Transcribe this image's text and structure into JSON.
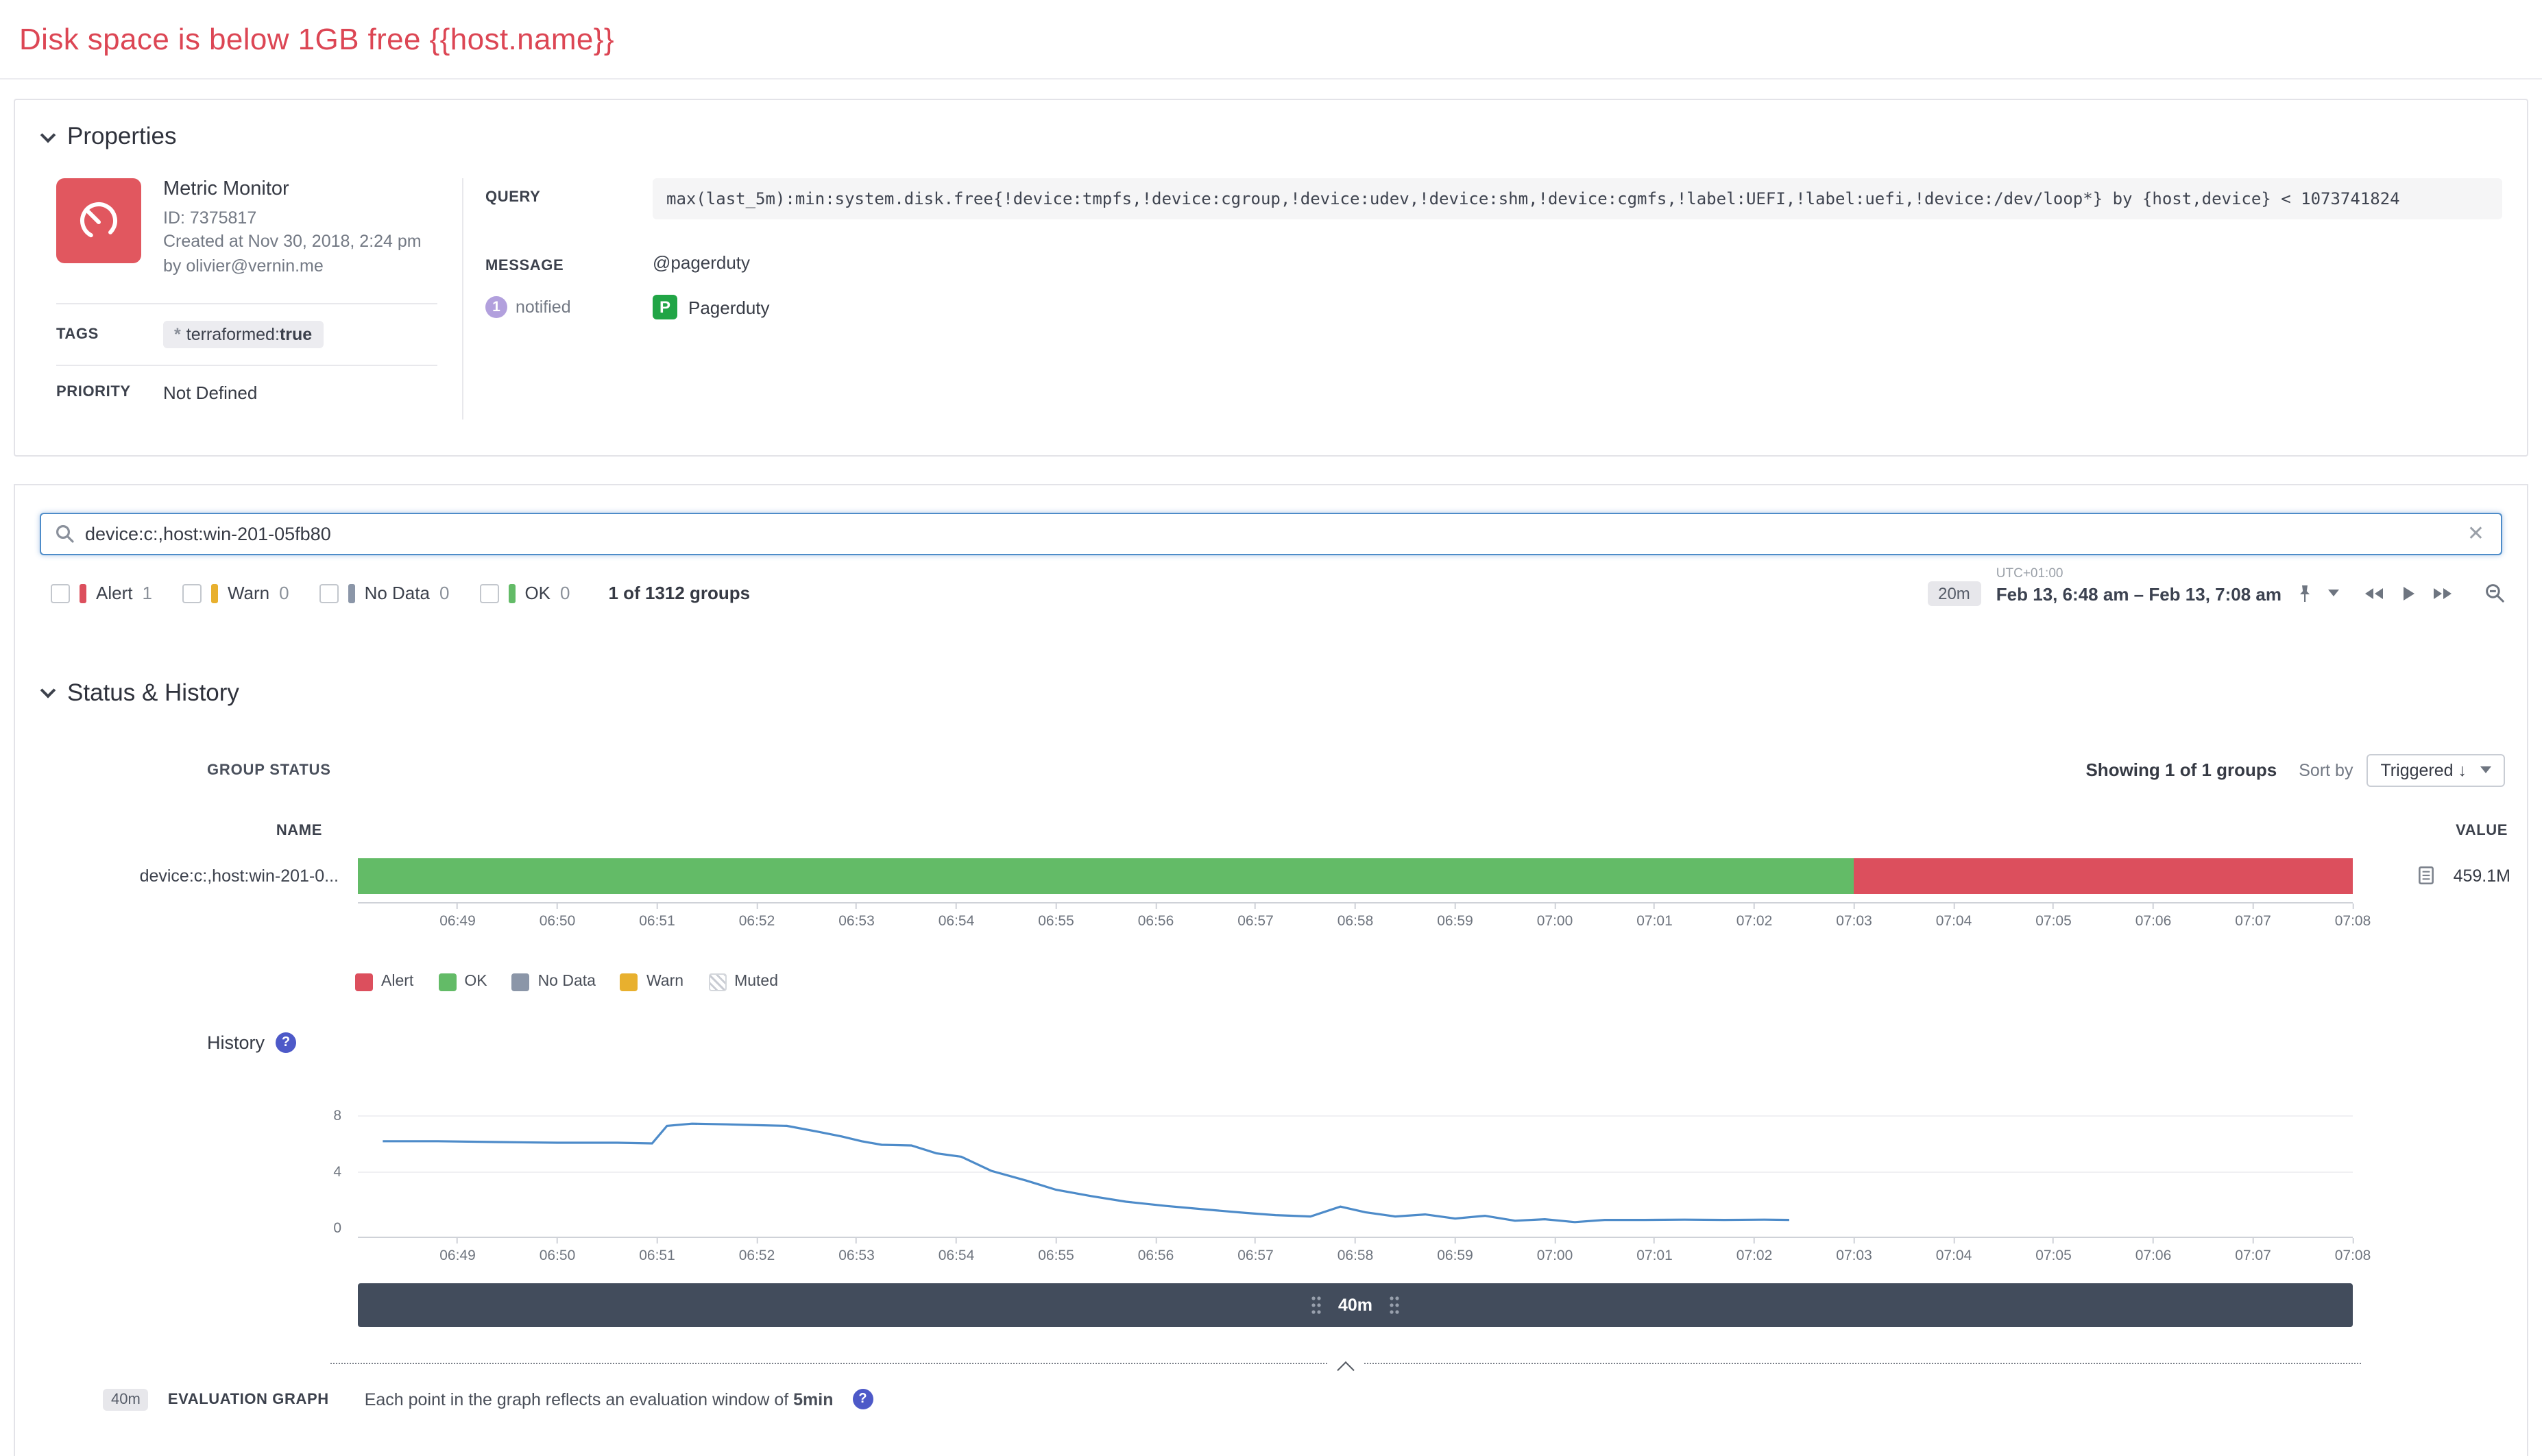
{
  "page": {
    "title": "Disk space is below 1GB free {{host.name}}"
  },
  "properties": {
    "header": "Properties",
    "monitor": {
      "type": "Metric Monitor",
      "id": "ID: 7375817",
      "created": "Created at Nov 30, 2018, 2:24 pm",
      "author": "by olivier@vernin.me"
    },
    "tags": {
      "label": "TAGS",
      "badge_prefix": "terraformed:",
      "badge_bold": "true"
    },
    "priority": {
      "label": "PRIORITY",
      "value": "Not Defined"
    },
    "query": {
      "label": "QUERY",
      "value": "max(last_5m):min:system.disk.free{!device:tmpfs,!device:cgroup,!device:udev,!device:shm,!device:cgmfs,!label:UEFI,!label:uefi,!device:/dev/loop*} by {host,device} < 1073741824"
    },
    "message": {
      "label": "MESSAGE",
      "notified_count": "1",
      "notified_label": "notified",
      "mention": "@pagerduty",
      "integration": "Pagerduty"
    }
  },
  "search": {
    "value": "device:c:,host:win-201-05fb80"
  },
  "filters": {
    "items": [
      {
        "label": "Alert",
        "count": "1",
        "color": "#dc4f5d"
      },
      {
        "label": "Warn",
        "count": "0",
        "color": "#e8b02e"
      },
      {
        "label": "No Data",
        "count": "0",
        "color": "#8b96a8"
      },
      {
        "label": "OK",
        "count": "0",
        "color": "#63bb67"
      }
    ],
    "groups_summary": "1 of 1312 groups"
  },
  "timerange": {
    "badge": "20m",
    "timezone": "UTC+01:00",
    "range": "Feb 13, 6:48 am – Feb 13, 7:08 am"
  },
  "status_history": {
    "header": "Status & History",
    "group_status_label": "GROUP STATUS",
    "showing": "Showing 1 of 1 groups",
    "sort_by_label": "Sort by",
    "sort_value": "Triggered ↓",
    "name_header": "NAME",
    "value_header": "VALUE",
    "row": {
      "name": "device:c:,host:win-201-0...",
      "value": "459.1M"
    },
    "legend": [
      {
        "label": "Alert",
        "color": "#dc4f5d"
      },
      {
        "label": "OK",
        "color": "#63bb67"
      },
      {
        "label": "No Data",
        "color": "#8b96a8"
      },
      {
        "label": "Warn",
        "color": "#e8b02e"
      },
      {
        "label": "Muted",
        "pattern": "hatched"
      }
    ],
    "history_label": "History"
  },
  "window": {
    "label": "40m"
  },
  "evaluation": {
    "badge": "40m",
    "label": "EVALUATION GRAPH",
    "description_prefix": "Each point in the graph reflects an evaluation window of ",
    "description_bold": "5min"
  },
  "chart_data": [
    {
      "type": "heatmap",
      "subtype": "status-timeline",
      "title": "GROUP STATUS",
      "group_name": "device:c:,host:win-201-0...",
      "value": "459.1M",
      "x_range": [
        "06:48",
        "07:08"
      ],
      "duration_min": 20,
      "ticks": [
        "06:49",
        "06:50",
        "06:51",
        "06:52",
        "06:53",
        "06:54",
        "06:55",
        "06:56",
        "06:57",
        "06:58",
        "06:59",
        "07:00",
        "07:01",
        "07:02",
        "07:03",
        "07:04",
        "07:05",
        "07:06",
        "07:07",
        "07:08"
      ],
      "segments": [
        {
          "status": "OK",
          "from_min": 0,
          "to_min": 15,
          "color": "#63bb67"
        },
        {
          "status": "Alert",
          "from_min": 15,
          "to_min": 20,
          "color": "#dc4f5d"
        }
      ],
      "legend": [
        "Alert",
        "OK",
        "No Data",
        "Warn",
        "Muted"
      ]
    },
    {
      "type": "line",
      "title": "History",
      "duration_min": 20,
      "x_range": [
        "06:48",
        "07:08"
      ],
      "ylim": [
        0,
        9
      ],
      "yticks": [
        0,
        4,
        8
      ],
      "stroke": "#4d8bc9",
      "points": [
        [
          0.25,
          6.2
        ],
        [
          0.8,
          6.2
        ],
        [
          1.4,
          6.15
        ],
        [
          2.0,
          6.1
        ],
        [
          2.6,
          6.1
        ],
        [
          2.95,
          6.05
        ],
        [
          3.1,
          7.3
        ],
        [
          3.35,
          7.45
        ],
        [
          3.7,
          7.4
        ],
        [
          4.0,
          7.35
        ],
        [
          4.3,
          7.3
        ],
        [
          4.6,
          6.9
        ],
        [
          4.85,
          6.55
        ],
        [
          5.05,
          6.2
        ],
        [
          5.25,
          5.95
        ],
        [
          5.55,
          5.9
        ],
        [
          5.8,
          5.35
        ],
        [
          6.05,
          5.1
        ],
        [
          6.35,
          4.1
        ],
        [
          6.7,
          3.4
        ],
        [
          7.0,
          2.75
        ],
        [
          7.35,
          2.3
        ],
        [
          7.7,
          1.9
        ],
        [
          8.1,
          1.6
        ],
        [
          8.5,
          1.35
        ],
        [
          8.9,
          1.1
        ],
        [
          9.2,
          0.95
        ],
        [
          9.55,
          0.85
        ],
        [
          9.85,
          1.55
        ],
        [
          10.1,
          1.15
        ],
        [
          10.4,
          0.85
        ],
        [
          10.7,
          1.0
        ],
        [
          11.0,
          0.7
        ],
        [
          11.3,
          0.9
        ],
        [
          11.6,
          0.55
        ],
        [
          11.9,
          0.65
        ],
        [
          12.2,
          0.45
        ],
        [
          12.5,
          0.6
        ],
        [
          12.9,
          0.6
        ],
        [
          13.3,
          0.62
        ],
        [
          13.7,
          0.6
        ],
        [
          14.1,
          0.62
        ],
        [
          14.35,
          0.6
        ]
      ]
    }
  ]
}
